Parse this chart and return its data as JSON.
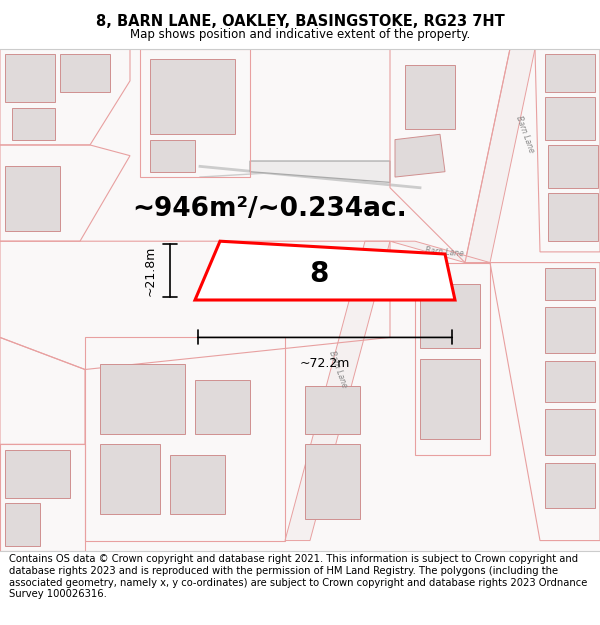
{
  "title": "8, BARN LANE, OAKLEY, BASINGSTOKE, RG23 7HT",
  "subtitle": "Map shows position and indicative extent of the property.",
  "footer": "Contains OS data © Crown copyright and database right 2021. This information is subject to Crown copyright and database rights 2023 and is reproduced with the permission of HM Land Registry. The polygons (including the associated geometry, namely x, y co-ordinates) are subject to Crown copyright and database rights 2023 Ordnance Survey 100026316.",
  "area_label": "~946m²/~0.234ac.",
  "width_label": "~72.2m",
  "height_label": "~21.8m",
  "plot_number": "8",
  "map_bg": "#faf8f8",
  "line_color": "#e8a0a0",
  "building_fill": "#e0dada",
  "building_stroke": "#d09090",
  "highlight_color": "#ff0000",
  "dim_line_color": "#444444",
  "title_fontsize": 10.5,
  "subtitle_fontsize": 8.5,
  "footer_fontsize": 7.2,
  "area_fontsize": 19,
  "plot_num_fontsize": 20,
  "dim_fontsize": 9
}
